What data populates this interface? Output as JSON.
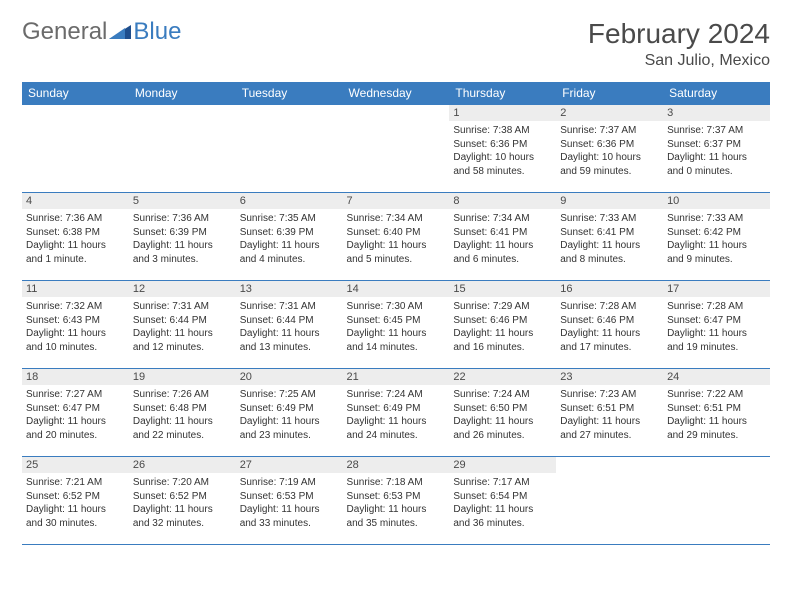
{
  "logo": {
    "general": "General",
    "blue": "Blue"
  },
  "header": {
    "title": "February 2024",
    "location": "San Julio, Mexico"
  },
  "colors": {
    "header_bg": "#3a7cbf",
    "header_text": "#ffffff",
    "daynum_bg": "#ededed",
    "border": "#3a7cbf",
    "logo_grey": "#6b6b6b",
    "logo_blue": "#3a7cbf"
  },
  "dayNames": [
    "Sunday",
    "Monday",
    "Tuesday",
    "Wednesday",
    "Thursday",
    "Friday",
    "Saturday"
  ],
  "weeks": [
    [
      {
        "num": "",
        "sunrise": "",
        "sunset": "",
        "daylight": ""
      },
      {
        "num": "",
        "sunrise": "",
        "sunset": "",
        "daylight": ""
      },
      {
        "num": "",
        "sunrise": "",
        "sunset": "",
        "daylight": ""
      },
      {
        "num": "",
        "sunrise": "",
        "sunset": "",
        "daylight": ""
      },
      {
        "num": "1",
        "sunrise": "Sunrise: 7:38 AM",
        "sunset": "Sunset: 6:36 PM",
        "daylight": "Daylight: 10 hours and 58 minutes."
      },
      {
        "num": "2",
        "sunrise": "Sunrise: 7:37 AM",
        "sunset": "Sunset: 6:36 PM",
        "daylight": "Daylight: 10 hours and 59 minutes."
      },
      {
        "num": "3",
        "sunrise": "Sunrise: 7:37 AM",
        "sunset": "Sunset: 6:37 PM",
        "daylight": "Daylight: 11 hours and 0 minutes."
      }
    ],
    [
      {
        "num": "4",
        "sunrise": "Sunrise: 7:36 AM",
        "sunset": "Sunset: 6:38 PM",
        "daylight": "Daylight: 11 hours and 1 minute."
      },
      {
        "num": "5",
        "sunrise": "Sunrise: 7:36 AM",
        "sunset": "Sunset: 6:39 PM",
        "daylight": "Daylight: 11 hours and 3 minutes."
      },
      {
        "num": "6",
        "sunrise": "Sunrise: 7:35 AM",
        "sunset": "Sunset: 6:39 PM",
        "daylight": "Daylight: 11 hours and 4 minutes."
      },
      {
        "num": "7",
        "sunrise": "Sunrise: 7:34 AM",
        "sunset": "Sunset: 6:40 PM",
        "daylight": "Daylight: 11 hours and 5 minutes."
      },
      {
        "num": "8",
        "sunrise": "Sunrise: 7:34 AM",
        "sunset": "Sunset: 6:41 PM",
        "daylight": "Daylight: 11 hours and 6 minutes."
      },
      {
        "num": "9",
        "sunrise": "Sunrise: 7:33 AM",
        "sunset": "Sunset: 6:41 PM",
        "daylight": "Daylight: 11 hours and 8 minutes."
      },
      {
        "num": "10",
        "sunrise": "Sunrise: 7:33 AM",
        "sunset": "Sunset: 6:42 PM",
        "daylight": "Daylight: 11 hours and 9 minutes."
      }
    ],
    [
      {
        "num": "11",
        "sunrise": "Sunrise: 7:32 AM",
        "sunset": "Sunset: 6:43 PM",
        "daylight": "Daylight: 11 hours and 10 minutes."
      },
      {
        "num": "12",
        "sunrise": "Sunrise: 7:31 AM",
        "sunset": "Sunset: 6:44 PM",
        "daylight": "Daylight: 11 hours and 12 minutes."
      },
      {
        "num": "13",
        "sunrise": "Sunrise: 7:31 AM",
        "sunset": "Sunset: 6:44 PM",
        "daylight": "Daylight: 11 hours and 13 minutes."
      },
      {
        "num": "14",
        "sunrise": "Sunrise: 7:30 AM",
        "sunset": "Sunset: 6:45 PM",
        "daylight": "Daylight: 11 hours and 14 minutes."
      },
      {
        "num": "15",
        "sunrise": "Sunrise: 7:29 AM",
        "sunset": "Sunset: 6:46 PM",
        "daylight": "Daylight: 11 hours and 16 minutes."
      },
      {
        "num": "16",
        "sunrise": "Sunrise: 7:28 AM",
        "sunset": "Sunset: 6:46 PM",
        "daylight": "Daylight: 11 hours and 17 minutes."
      },
      {
        "num": "17",
        "sunrise": "Sunrise: 7:28 AM",
        "sunset": "Sunset: 6:47 PM",
        "daylight": "Daylight: 11 hours and 19 minutes."
      }
    ],
    [
      {
        "num": "18",
        "sunrise": "Sunrise: 7:27 AM",
        "sunset": "Sunset: 6:47 PM",
        "daylight": "Daylight: 11 hours and 20 minutes."
      },
      {
        "num": "19",
        "sunrise": "Sunrise: 7:26 AM",
        "sunset": "Sunset: 6:48 PM",
        "daylight": "Daylight: 11 hours and 22 minutes."
      },
      {
        "num": "20",
        "sunrise": "Sunrise: 7:25 AM",
        "sunset": "Sunset: 6:49 PM",
        "daylight": "Daylight: 11 hours and 23 minutes."
      },
      {
        "num": "21",
        "sunrise": "Sunrise: 7:24 AM",
        "sunset": "Sunset: 6:49 PM",
        "daylight": "Daylight: 11 hours and 24 minutes."
      },
      {
        "num": "22",
        "sunrise": "Sunrise: 7:24 AM",
        "sunset": "Sunset: 6:50 PM",
        "daylight": "Daylight: 11 hours and 26 minutes."
      },
      {
        "num": "23",
        "sunrise": "Sunrise: 7:23 AM",
        "sunset": "Sunset: 6:51 PM",
        "daylight": "Daylight: 11 hours and 27 minutes."
      },
      {
        "num": "24",
        "sunrise": "Sunrise: 7:22 AM",
        "sunset": "Sunset: 6:51 PM",
        "daylight": "Daylight: 11 hours and 29 minutes."
      }
    ],
    [
      {
        "num": "25",
        "sunrise": "Sunrise: 7:21 AM",
        "sunset": "Sunset: 6:52 PM",
        "daylight": "Daylight: 11 hours and 30 minutes."
      },
      {
        "num": "26",
        "sunrise": "Sunrise: 7:20 AM",
        "sunset": "Sunset: 6:52 PM",
        "daylight": "Daylight: 11 hours and 32 minutes."
      },
      {
        "num": "27",
        "sunrise": "Sunrise: 7:19 AM",
        "sunset": "Sunset: 6:53 PM",
        "daylight": "Daylight: 11 hours and 33 minutes."
      },
      {
        "num": "28",
        "sunrise": "Sunrise: 7:18 AM",
        "sunset": "Sunset: 6:53 PM",
        "daylight": "Daylight: 11 hours and 35 minutes."
      },
      {
        "num": "29",
        "sunrise": "Sunrise: 7:17 AM",
        "sunset": "Sunset: 6:54 PM",
        "daylight": "Daylight: 11 hours and 36 minutes."
      },
      {
        "num": "",
        "sunrise": "",
        "sunset": "",
        "daylight": ""
      },
      {
        "num": "",
        "sunrise": "",
        "sunset": "",
        "daylight": ""
      }
    ]
  ]
}
